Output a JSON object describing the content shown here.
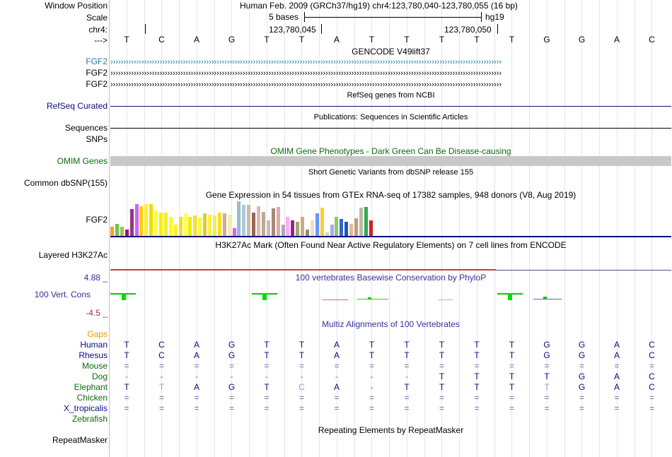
{
  "header": {
    "window_position_label": "Window Position",
    "window_position_value": "Human Feb. 2009 (GRCh37/hg19)   chr4:123,780,040-123,780,055 (16 bp)",
    "scale_label": "Scale",
    "scale_text": "5 bases",
    "scale_assembly": "hg19",
    "chrom_label": "chr4:",
    "pos1": "123,780,045",
    "pos2": "123,780,050",
    "strand_label": "--->"
  },
  "dna_sequence": [
    "T",
    "C",
    "A",
    "G",
    "T",
    "T",
    "A",
    "T",
    "T",
    "T",
    "T",
    "T",
    "G",
    "G",
    "A",
    "C"
  ],
  "tracks": {
    "gencode": {
      "title": "GENCODE V49lift37",
      "genes": [
        "FGF2",
        "FGF2",
        "FGF2"
      ],
      "gene_color": "#1d7ba3",
      "arrow_text": "›››››››››››››››››››››››››››››››››››››››››››››››››››››››››››››››››››››››››››››››››››››››››››››››››››››››››››››››››››››››››››››››››››››››››››››››››››››››"
    },
    "refseq": {
      "title": "RefSeq genes from NCBI",
      "label": "RefSeq Curated",
      "color": "#0c0c78"
    },
    "publications": {
      "title": "Publications: Sequences in Scientific Articles",
      "label1": "Sequences",
      "label2": "SNPs"
    },
    "omim": {
      "title": "OMIM Gene Phenotypes - Dark Green Can Be Disease-causing",
      "label": "OMIM Genes",
      "color": "#0d6a0d"
    },
    "dbsnp": {
      "title": "Short Genetic Variants from dbSNP release 155",
      "label": "Common dbSNP(155)"
    },
    "gtex": {
      "title": "Gene Expression in 54 tissues from GTEx RNA-seq of 17382 samples, 948 donors (V8, Aug 2019)",
      "label": "FGF2",
      "values": [
        12,
        16,
        12,
        8,
        35,
        41,
        39,
        41,
        41,
        33,
        30,
        30,
        25,
        15,
        25,
        29,
        25,
        27,
        24,
        29,
        28,
        27,
        30,
        29,
        28,
        10,
        45,
        40,
        40,
        30,
        39,
        31,
        20,
        36,
        38,
        15,
        25,
        20,
        18,
        25,
        8,
        20,
        29,
        37,
        5,
        15,
        25,
        22,
        18,
        16,
        23,
        37,
        38,
        20
      ],
      "colors": [
        "#ff9933",
        "#66cc44",
        "#aabb66",
        "#aa1166",
        "#993388",
        "#cc66ff",
        "#ffcc00",
        "#ffee33",
        "#eedd00",
        "#ffff33",
        "#ffee00",
        "#eeee33",
        "#ffff00",
        "#ffee22",
        "#eedd33",
        "#ffff55",
        "#eeee00",
        "#ffdd33",
        "#eeff33",
        "#ddcc33",
        "#ffee44",
        "#eeee55",
        "#ffdd22",
        "#ccaa99",
        "#eeeeaa",
        "#cc66ff",
        "#99bbcc",
        "#aaccdd",
        "#ccbbaa",
        "#996655",
        "#ddbbaa",
        "#bbaa99",
        "#ccbbbb",
        "#aa8877",
        "#ddaaaa",
        "#aaaaaa",
        "#ffaaff",
        "#992288",
        "#99aa66",
        "#ccaa88",
        "#998877",
        "#eeddcc",
        "#6699ff",
        "#ffcc33",
        "#ccddaa",
        "#aaaaee",
        "#88cc66",
        "#3366cc",
        "#2255bb",
        "#ddbb99",
        "#cc9977",
        "#bbbbaa",
        "#33aa55",
        "#cc2222"
      ]
    },
    "h3k27ac": {
      "title": "H3K27Ac Mark (Often Found Near Active Regulatory Elements) on 7 cell lines from ENCODE",
      "label": "Layered H3K27Ac"
    },
    "phylop": {
      "title": "100 vertebrates Basewise Conservation by PhyloP",
      "label": "100 Vert. Cons",
      "max": "4.88 _",
      "min": "-4.5 _",
      "color": "#333399",
      "min_color": "#993333"
    },
    "multiz": {
      "title": "Multiz Alignments of 100 Vertebrates",
      "gaps_label": "Gaps",
      "species": [
        {
          "name": "Human",
          "seq": [
            "T",
            "C",
            "A",
            "G",
            "T",
            "T",
            "A",
            "T",
            "T",
            "T",
            "T",
            "T",
            "G",
            "G",
            "A",
            "C"
          ]
        },
        {
          "name": "Rhesus",
          "seq": [
            "T",
            "C",
            "A",
            "G",
            "T",
            "T",
            "A",
            "T",
            "T",
            "T",
            "T",
            "T",
            "G",
            "G",
            "A",
            "C"
          ]
        },
        {
          "name": "Mouse",
          "seq": [
            "=",
            "=",
            "=",
            "=",
            "=",
            "=",
            "=",
            "=",
            "=",
            "=",
            "=",
            "=",
            "=",
            "=",
            "=",
            "="
          ]
        },
        {
          "name": "Dog",
          "seq": [
            "-",
            "-",
            "-",
            "-",
            "-",
            "-",
            "-",
            "-",
            "-",
            "T",
            "T",
            "T",
            "T",
            "G",
            "A",
            "C"
          ]
        },
        {
          "name": "Elephant",
          "seq": [
            "T",
            "T",
            "A",
            "G",
            "T",
            "C",
            "A",
            "-",
            "T",
            "T",
            "T",
            "T",
            "T",
            "G",
            "A",
            "C"
          ]
        },
        {
          "name": "Chicken",
          "seq": [
            "=",
            "=",
            "=",
            "=",
            "=",
            "=",
            "=",
            "=",
            "=",
            "=",
            "=",
            "=",
            "=",
            "=",
            "=",
            "="
          ]
        },
        {
          "name": "X_tropicalis",
          "seq": [
            "=",
            "=",
            "=",
            "=",
            "=",
            "=",
            "=",
            "=",
            "=",
            "=",
            "=",
            "=",
            "=",
            "=",
            "=",
            "="
          ]
        },
        {
          "name": "Zebrafish",
          "seq": [
            "",
            "",
            "",
            "",
            "",
            "",
            "",
            "",
            "",
            "",
            "",
            "",
            "",
            "",
            "",
            ""
          ]
        }
      ]
    },
    "repeatmasker": {
      "title": "Repeating Elements by RepeatMasker",
      "label": "RepeatMasker"
    }
  }
}
